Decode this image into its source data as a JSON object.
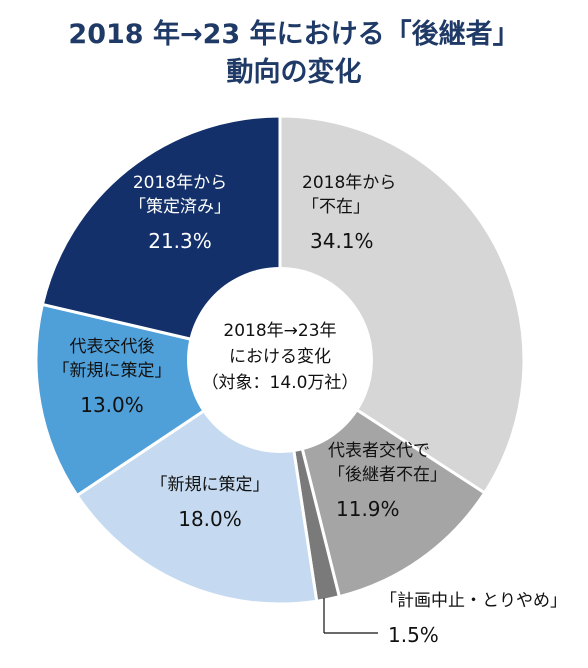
{
  "header": {
    "title_line1": "2018 年→23 年における「後継者」",
    "title_line2": "動向の変化"
  },
  "center_label": {
    "line1": "2018年→23年",
    "line2": "における変化",
    "line3": "（対象：14.0万社）"
  },
  "chart_data": {
    "type": "pie",
    "donut": true,
    "unit": "%",
    "title": "2018 年→23 年における「後継者」動向の変化",
    "slices": [
      {
        "name": "2018年から「不在」",
        "label_lines": [
          "2018年から",
          "「不在」"
        ],
        "value": 34.1,
        "value_label": "34.1%",
        "color": "#d6d6d6",
        "text_color": "#111111"
      },
      {
        "name": "代表者交代で「後継者不在」",
        "label_lines": [
          "代表者交代で",
          "「後継者不在」"
        ],
        "value": 11.9,
        "value_label": "11.9%",
        "color": "#a5a5a5",
        "text_color": "#111111"
      },
      {
        "name": "「計画中止・とりやめ」",
        "label_lines": [
          "「計画中止・とりやめ」"
        ],
        "value": 1.5,
        "value_label": "1.5%",
        "color": "#7a7a7a",
        "text_color": "#111111"
      },
      {
        "name": "「新規に策定」",
        "label_lines": [
          "「新規に策定」"
        ],
        "value": 18.0,
        "value_label": "18.0%",
        "color": "#c5daf0",
        "text_color": "#111111"
      },
      {
        "name": "代表交代後「新規に策定」",
        "label_lines": [
          "代表交代後",
          "「新規に策定」"
        ],
        "value": 13.0,
        "value_label": "13.0%",
        "color": "#4f9fd8",
        "text_color": "#111111"
      },
      {
        "name": "2018年から「策定済み」",
        "label_lines": [
          "2018年から",
          "「策定済み」"
        ],
        "value": 21.3,
        "value_label": "21.3%",
        "color": "#13306a",
        "text_color": "#ffffff"
      }
    ]
  }
}
